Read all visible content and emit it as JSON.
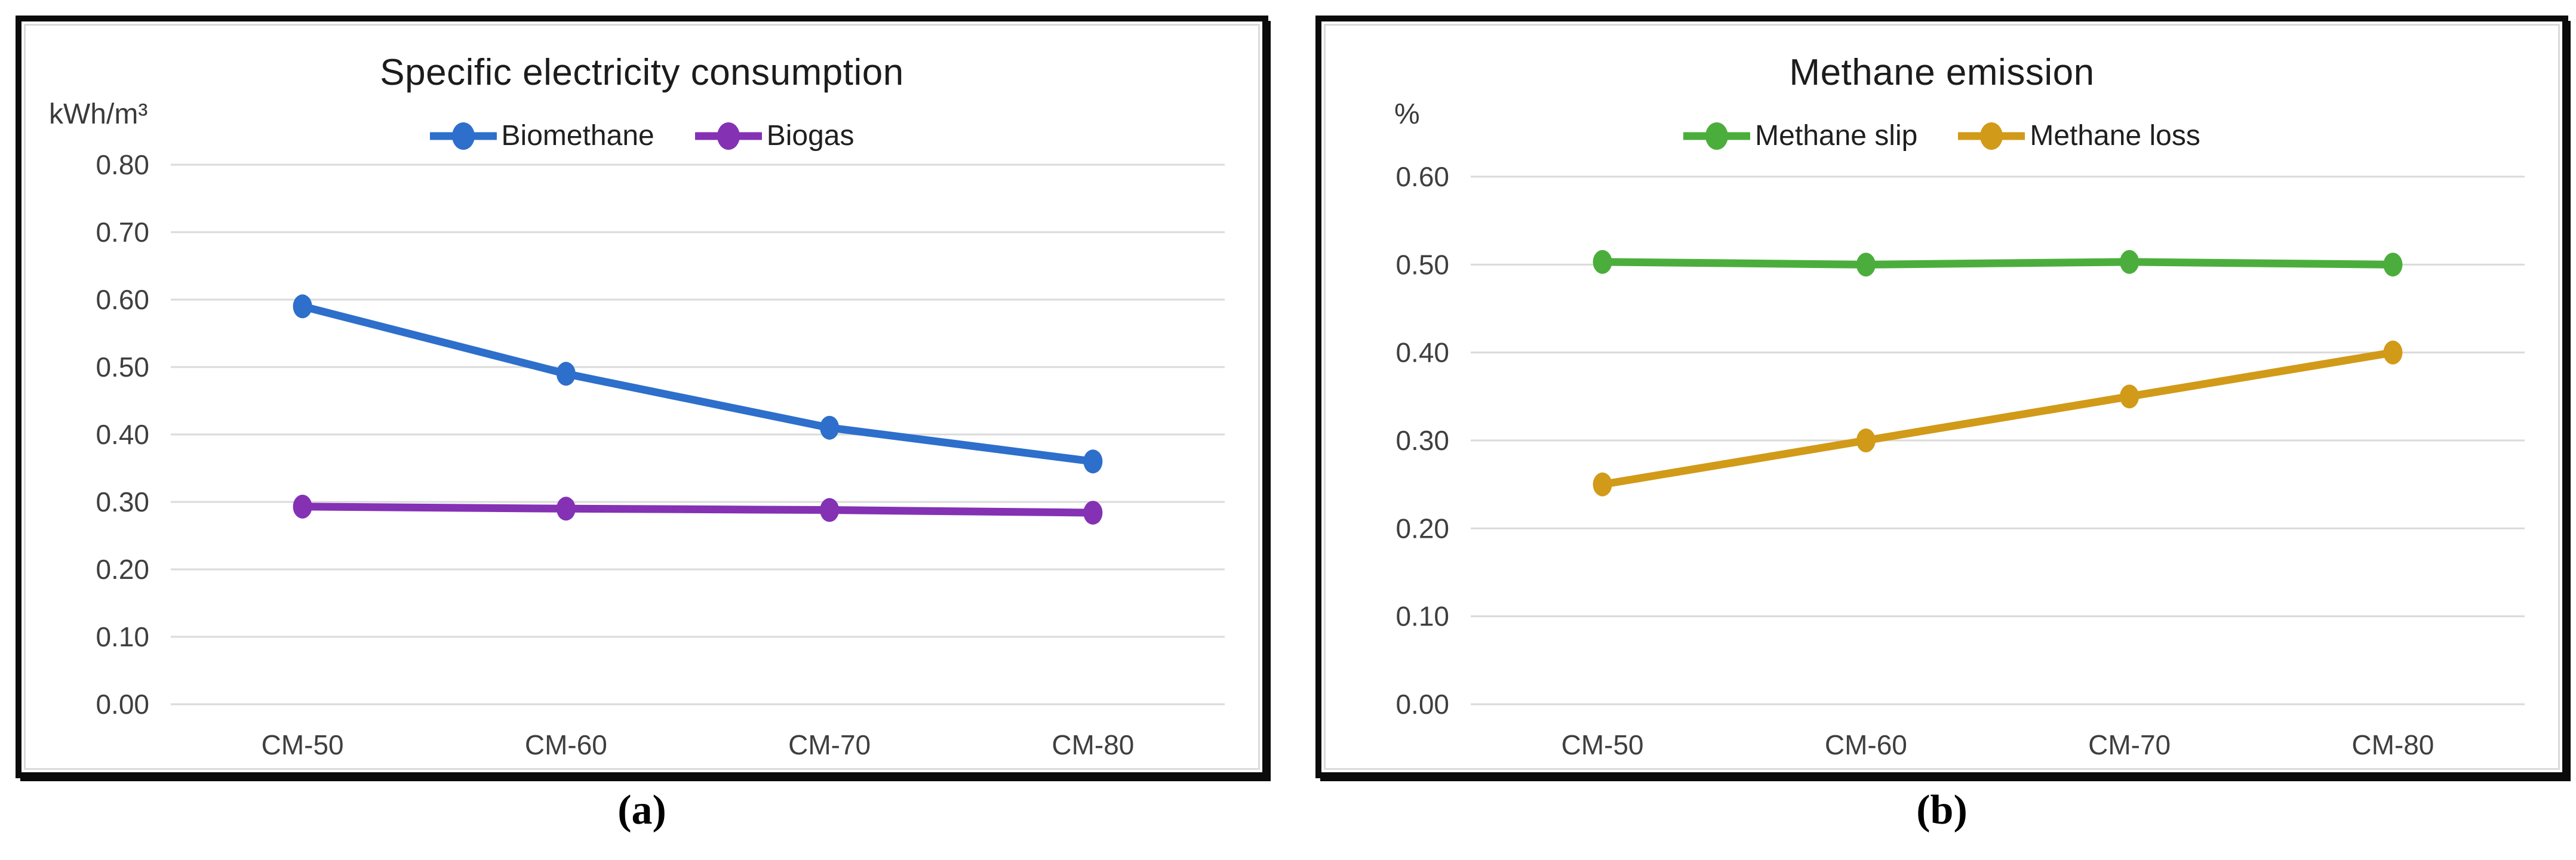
{
  "figure": {
    "captions": [
      "(a)",
      "(b)"
    ]
  },
  "chart_data": [
    {
      "type": "line",
      "title": "Specific electricity consumption",
      "unit": "kWh/m³",
      "xlabel": "",
      "ylabel": "kWh/m³",
      "categories": [
        "CM-50",
        "CM-60",
        "CM-70",
        "CM-80"
      ],
      "tick_labels": [
        "0.00",
        "0.10",
        "0.20",
        "0.30",
        "0.40",
        "0.50",
        "0.60",
        "0.70",
        "0.80"
      ],
      "ylim": [
        0.0,
        0.8
      ],
      "ystep": 0.1,
      "grid": "on",
      "legend_position": "top",
      "grid_color": "#DADADA",
      "tick_color": "#3F3F3F",
      "series": [
        {
          "name": "Biomethane",
          "color": "#2D6FCB",
          "values": [
            0.59,
            0.49,
            0.41,
            0.36
          ]
        },
        {
          "name": "Biogas",
          "color": "#8431B4",
          "values": [
            0.293,
            0.29,
            0.288,
            0.284
          ]
        }
      ]
    },
    {
      "type": "line",
      "title": "Methane emission",
      "unit": "%",
      "xlabel": "",
      "ylabel": "%",
      "categories": [
        "CM-50",
        "CM-60",
        "CM-70",
        "CM-80"
      ],
      "tick_labels": [
        "0.00",
        "0.10",
        "0.20",
        "0.30",
        "0.40",
        "0.50",
        "0.60"
      ],
      "ylim": [
        0.0,
        0.6
      ],
      "ystep": 0.1,
      "grid": "on",
      "legend_position": "top",
      "grid_color": "#DADADA",
      "tick_color": "#3F3F3F",
      "series": [
        {
          "name": "Methane slip",
          "color": "#4BAE3C",
          "values": [
            0.503,
            0.5,
            0.503,
            0.5
          ]
        },
        {
          "name": "Methane loss",
          "color": "#D19A18",
          "values": [
            0.25,
            0.3,
            0.35,
            0.4
          ]
        }
      ]
    }
  ]
}
